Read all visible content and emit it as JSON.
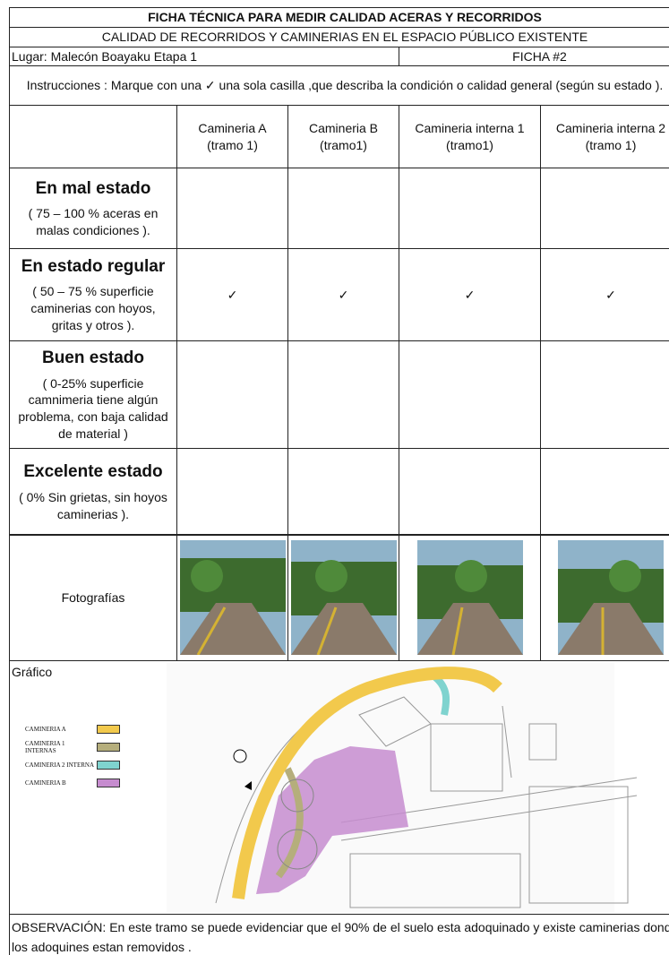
{
  "header": {
    "title": "FICHA TÉCNICA PARA MEDIR CALIDAD ACERAS Y RECORRIDOS",
    "subtitle": "CALIDAD DE RECORRIDOS Y CAMINERIAS EN EL ESPACIO PÚBLICO EXISTENTE",
    "lugar": "Lugar: Malecón Boayaku Etapa 1",
    "ficha": "FICHA #2",
    "instructions": "Instrucciones : Marque con una ✓ una sola casilla ,que describa la condición o calidad general (según su estado )."
  },
  "table": {
    "columns": [
      {
        "name": "Camineria A",
        "tramo": "(tramo 1)"
      },
      {
        "name": "Camineria  B",
        "tramo": "(tramo1)"
      },
      {
        "name": "Camineria interna 1",
        "tramo": "(tramo1)"
      },
      {
        "name": "Camineria interna  2",
        "tramo": "(tramo 1)"
      }
    ],
    "rows": [
      {
        "label": "En mal estado",
        "description": "( 75 – 100 % aceras en malas condiciones )."
      },
      {
        "label": "En estado regular",
        "description": "( 50 – 75 % superficie caminerias con hoyos, gritas y otros ).",
        "marks": [
          "✓",
          "✓",
          "✓",
          "✓"
        ]
      },
      {
        "label": "Buen estado",
        "description": "( 0-25% superficie camnimeria tiene algún problema, con baja calidad de material )"
      },
      {
        "label": "Excelente estado",
        "description": "( 0% Sin grietas, sin hoyos caminerias )."
      }
    ],
    "photos_label": "Fotografías"
  },
  "grafico": {
    "label": "Gráfico",
    "legend": [
      {
        "name": "CAMINERIA A",
        "color": "#f2c94c"
      },
      {
        "name": "CAMINERIA 1 INTERNAS",
        "color": "#b5ae7c"
      },
      {
        "name": "CAMINERIA 2 INTERNA",
        "color": "#7fd3cf"
      },
      {
        "name": "CAMINERIA B",
        "color": "#c68ccf"
      }
    ]
  },
  "observation": {
    "label": "OBSERVACIÓN:",
    "text": "En este tramo se puede evidenciar que el 90% de el suelo esta adoquinado y existe caminerias donde los adoquines estan removidos ."
  }
}
